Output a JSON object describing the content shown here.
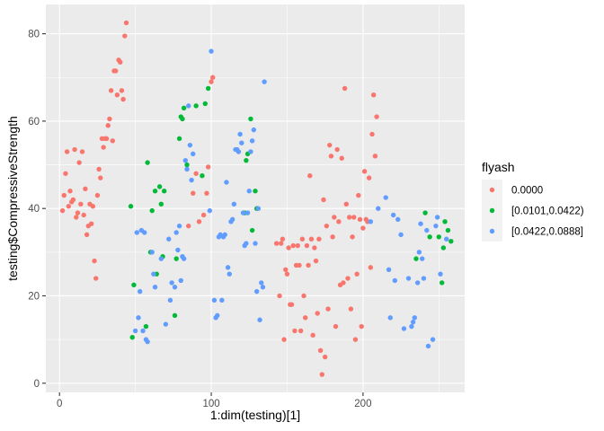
{
  "chart_data": {
    "type": "scatter",
    "xlabel": "1:dim(testing)[1]",
    "ylabel": "testing$CompressiveStrength",
    "xlim": [
      -9,
      267
    ],
    "ylim": [
      -2.1,
      86.7
    ],
    "x_ticks": [
      0,
      100,
      200
    ],
    "y_ticks": [
      0,
      20,
      40,
      60,
      80
    ],
    "grid": true,
    "legend": {
      "title": "flyash",
      "position": "right",
      "entries": [
        "0.0000",
        "[0.0101,0.0422)",
        "[0.0422,0.0888]"
      ]
    },
    "colors": {
      "panel_bg": "#ebebeb",
      "grid": "#ffffff",
      "0.0000": "#f8766d",
      "[0.0101,0.0422)": "#00ba38",
      "[0.0422,0.0888]": "#619cff"
    },
    "series": [
      {
        "name": "0.0000",
        "points": [
          [
            2,
            39.5
          ],
          [
            3,
            43
          ],
          [
            4,
            48
          ],
          [
            5,
            53
          ],
          [
            6,
            40.5
          ],
          [
            7,
            44
          ],
          [
            8,
            41.5
          ],
          [
            9,
            42
          ],
          [
            10,
            53.5
          ],
          [
            11,
            38
          ],
          [
            12,
            39
          ],
          [
            13,
            50.5
          ],
          [
            14,
            41
          ],
          [
            15,
            53
          ],
          [
            16,
            38.5
          ],
          [
            17,
            44.5
          ],
          [
            18,
            34
          ],
          [
            19,
            36
          ],
          [
            20,
            41
          ],
          [
            21,
            36.5
          ],
          [
            22,
            40.5
          ],
          [
            23,
            28
          ],
          [
            24,
            24
          ],
          [
            25,
            43
          ],
          [
            26,
            49
          ],
          [
            27,
            47
          ],
          [
            28,
            56
          ],
          [
            29,
            54
          ],
          [
            30,
            56
          ],
          [
            31,
            56
          ],
          [
            32,
            59
          ],
          [
            33,
            60.5
          ],
          [
            34,
            67
          ],
          [
            35,
            55.5
          ],
          [
            36,
            71.5
          ],
          [
            37,
            71.5
          ],
          [
            38,
            66
          ],
          [
            39,
            74
          ],
          [
            40,
            73.5
          ],
          [
            41,
            67
          ],
          [
            42,
            65
          ],
          [
            43,
            79.5
          ],
          [
            44,
            82.5
          ],
          [
            85,
            36
          ],
          [
            88,
            43.5
          ],
          [
            90,
            48
          ],
          [
            92,
            37
          ],
          [
            95,
            38.5
          ],
          [
            97,
            43.5
          ],
          [
            98,
            49.5
          ],
          [
            100,
            69
          ],
          [
            101,
            70
          ],
          [
            143,
            32
          ],
          [
            145,
            20
          ],
          [
            146,
            32
          ],
          [
            147,
            33
          ],
          [
            148,
            10
          ],
          [
            149,
            26
          ],
          [
            150,
            25
          ],
          [
            151,
            31
          ],
          [
            152,
            18
          ],
          [
            153,
            18
          ],
          [
            154,
            31.5
          ],
          [
            155,
            12
          ],
          [
            156,
            27
          ],
          [
            157,
            31.5
          ],
          [
            158,
            27
          ],
          [
            159,
            12
          ],
          [
            160,
            33
          ],
          [
            161,
            20
          ],
          [
            162,
            15
          ],
          [
            163,
            31.5
          ],
          [
            164,
            27
          ],
          [
            165,
            47.5
          ],
          [
            166,
            33
          ],
          [
            167,
            11
          ],
          [
            168,
            31
          ],
          [
            169,
            28
          ],
          [
            170,
            16
          ],
          [
            171,
            33
          ],
          [
            172,
            7.5
          ],
          [
            173,
            2
          ],
          [
            174,
            42
          ],
          [
            175,
            6
          ],
          [
            176,
            36
          ],
          [
            177,
            17
          ],
          [
            178,
            54.5
          ],
          [
            179,
            52
          ],
          [
            180,
            33.5
          ],
          [
            181,
            38
          ],
          [
            182,
            13
          ],
          [
            183,
            53.5
          ],
          [
            184,
            37
          ],
          [
            185,
            22.5
          ],
          [
            186,
            51.5
          ],
          [
            187,
            23
          ],
          [
            188,
            67.5
          ],
          [
            189,
            41
          ],
          [
            190,
            24
          ],
          [
            191,
            38
          ],
          [
            192,
            17
          ],
          [
            193,
            33.5
          ],
          [
            194,
            38
          ],
          [
            195,
            10
          ],
          [
            196,
            25
          ],
          [
            197,
            43
          ],
          [
            198,
            37.5
          ],
          [
            199,
            13
          ],
          [
            200,
            35.5
          ],
          [
            201,
            48.5
          ],
          [
            202,
            37.5
          ],
          [
            203,
            37
          ],
          [
            204,
            47
          ],
          [
            205,
            26.5
          ],
          [
            206,
            57
          ],
          [
            207,
            66
          ],
          [
            208,
            52
          ],
          [
            209,
            61
          ]
        ]
      },
      {
        "name": "[0.0101,0.0422)",
        "points": [
          [
            47,
            40.5
          ],
          [
            48,
            10.5
          ],
          [
            49,
            22.5
          ],
          [
            57,
            13
          ],
          [
            58,
            50.5
          ],
          [
            60,
            30
          ],
          [
            61,
            39.5
          ],
          [
            63,
            44
          ],
          [
            64,
            25
          ],
          [
            66,
            45
          ],
          [
            67,
            41
          ],
          [
            68,
            29
          ],
          [
            69,
            44
          ],
          [
            76,
            15.5
          ],
          [
            77,
            28.5
          ],
          [
            79,
            56
          ],
          [
            80,
            61
          ],
          [
            81,
            60.5
          ],
          [
            82,
            63
          ],
          [
            84,
            50
          ],
          [
            90,
            63.5
          ],
          [
            94,
            47.5
          ],
          [
            96,
            64
          ],
          [
            98,
            67.5
          ],
          [
            122,
            39
          ],
          [
            123,
            51
          ],
          [
            124,
            52.5
          ],
          [
            126,
            60.5
          ],
          [
            127,
            35
          ],
          [
            129,
            44
          ],
          [
            130,
            40
          ],
          [
            235,
            28.5
          ],
          [
            241,
            39
          ],
          [
            244,
            33.5
          ],
          [
            250,
            33.5
          ],
          [
            252,
            23
          ],
          [
            253,
            31
          ],
          [
            254,
            37
          ],
          [
            256,
            35
          ],
          [
            258,
            32.5
          ]
        ]
      },
      {
        "name": "[0.0422,0.0888]",
        "points": [
          [
            50,
            12
          ],
          [
            51,
            34.5
          ],
          [
            52,
            15
          ],
          [
            53,
            21
          ],
          [
            54,
            35
          ],
          [
            55,
            12
          ],
          [
            56,
            34.5
          ],
          [
            57,
            10
          ],
          [
            58,
            9.5
          ],
          [
            61,
            30
          ],
          [
            62,
            25
          ],
          [
            63,
            22
          ],
          [
            67,
            28.5
          ],
          [
            70,
            13.5
          ],
          [
            72,
            33
          ],
          [
            73,
            19
          ],
          [
            74,
            23
          ],
          [
            76,
            22
          ],
          [
            77,
            34.5
          ],
          [
            78,
            30.5
          ],
          [
            79,
            36
          ],
          [
            80,
            23.5
          ],
          [
            81,
            29
          ],
          [
            82,
            28.5
          ],
          [
            83,
            51
          ],
          [
            84,
            49
          ],
          [
            85,
            63.5
          ],
          [
            86,
            54.5
          ],
          [
            87,
            46.5
          ],
          [
            88,
            52.5
          ],
          [
            99,
            39.5
          ],
          [
            100,
            76
          ],
          [
            102,
            19
          ],
          [
            103,
            15
          ],
          [
            104,
            15.5
          ],
          [
            105,
            33.5
          ],
          [
            106,
            34
          ],
          [
            107,
            19
          ],
          [
            108,
            33.5
          ],
          [
            109,
            34
          ],
          [
            110,
            46
          ],
          [
            111,
            26.5
          ],
          [
            112,
            25
          ],
          [
            113,
            37
          ],
          [
            114,
            37.5
          ],
          [
            115,
            41
          ],
          [
            116,
            53.5
          ],
          [
            117,
            53.5
          ],
          [
            118,
            53
          ],
          [
            119,
            57
          ],
          [
            120,
            55
          ],
          [
            121,
            39
          ],
          [
            122,
            31.5
          ],
          [
            123,
            32
          ],
          [
            124,
            39
          ],
          [
            125,
            44
          ],
          [
            126,
            53
          ],
          [
            127,
            55.5
          ],
          [
            128,
            58
          ],
          [
            129,
            32
          ],
          [
            130,
            21
          ],
          [
            131,
            40
          ],
          [
            132,
            14.5
          ],
          [
            133,
            23
          ],
          [
            134,
            22
          ],
          [
            135,
            69
          ],
          [
            205,
            37
          ],
          [
            210,
            40
          ],
          [
            215,
            42.5
          ],
          [
            217,
            26
          ],
          [
            218,
            15
          ],
          [
            220,
            38.5
          ],
          [
            221,
            23.5
          ],
          [
            223,
            37.5
          ],
          [
            225,
            34
          ],
          [
            227,
            12.5
          ],
          [
            230,
            24
          ],
          [
            232,
            13
          ],
          [
            233,
            14
          ],
          [
            234,
            15
          ],
          [
            236,
            23
          ],
          [
            237,
            30
          ],
          [
            238,
            36.5
          ],
          [
            239,
            28.5
          ],
          [
            240,
            24
          ],
          [
            242,
            35
          ],
          [
            243,
            8.5
          ],
          [
            246,
            10
          ],
          [
            248,
            36
          ],
          [
            249,
            38
          ],
          [
            251,
            25
          ],
          [
            255,
            33
          ]
        ]
      }
    ]
  }
}
